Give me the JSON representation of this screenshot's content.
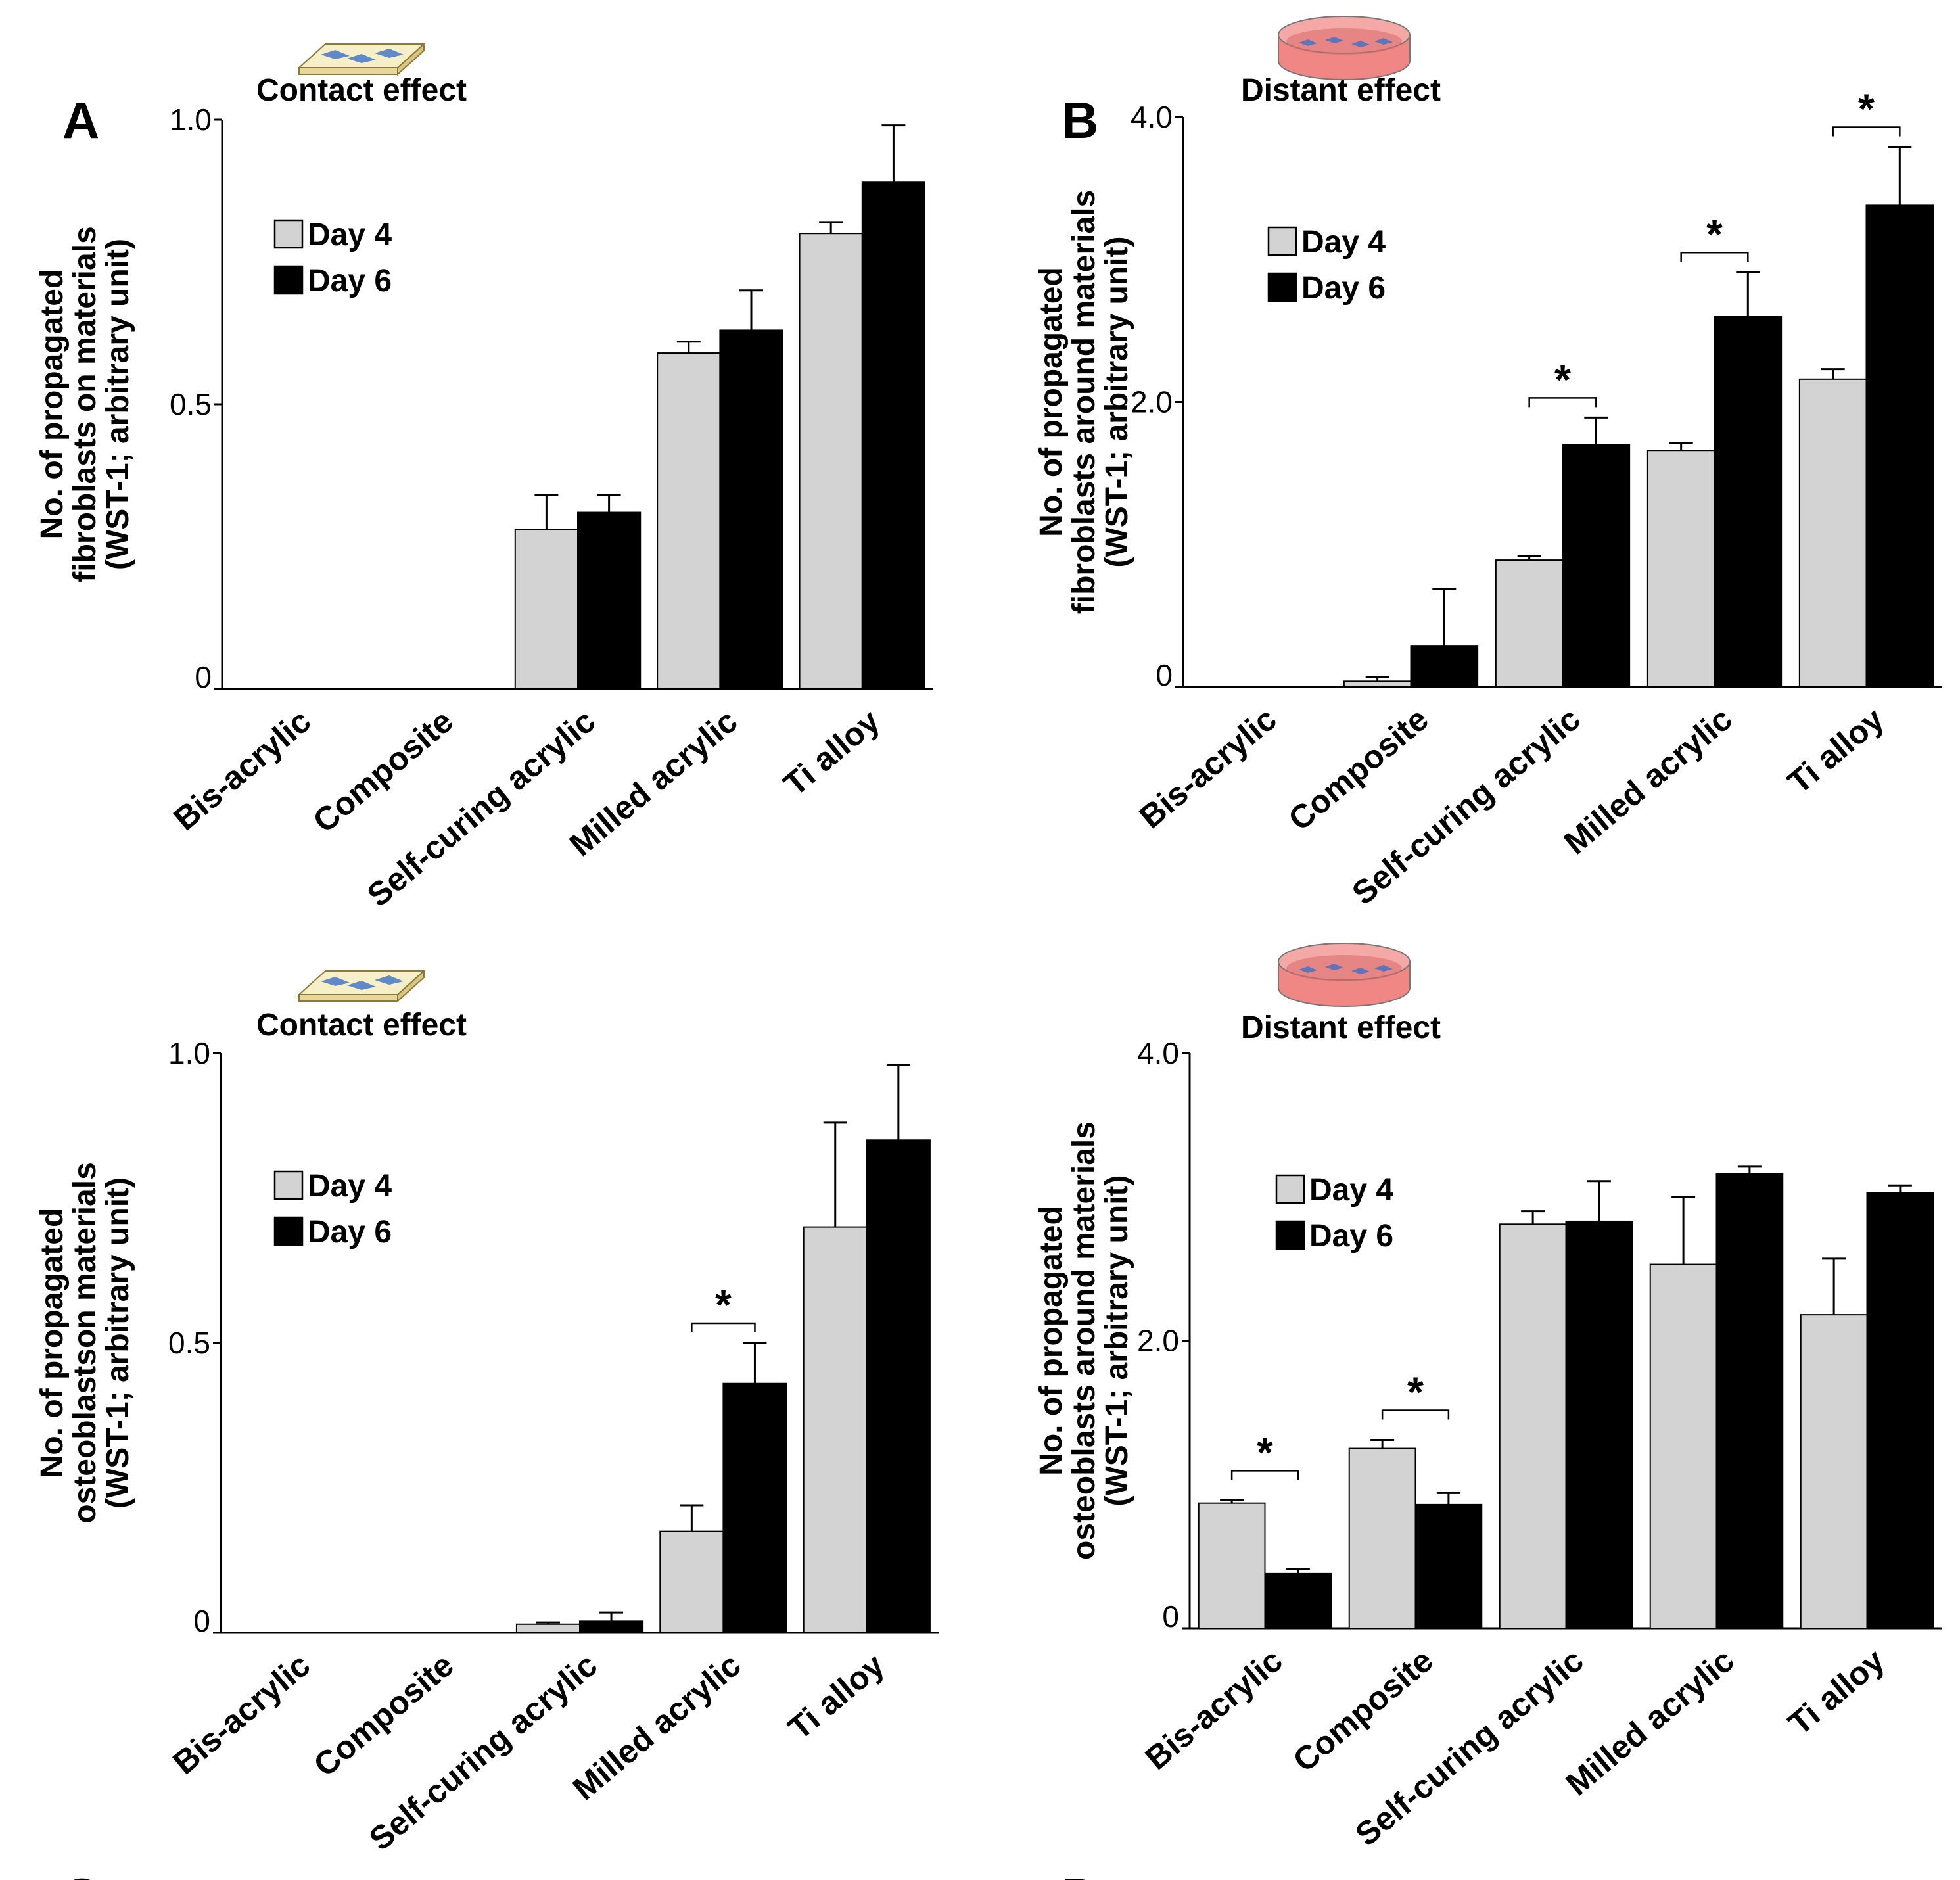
{
  "colors": {
    "day4": "#d3d3d3",
    "day6": "#000000",
    "dish_fill": "#f08784",
    "dish_rim": "#d86a68",
    "slide_fill": "#f6efc8",
    "cell": "#3d6fc7"
  },
  "chart_data": [
    {
      "panel": "A",
      "type": "bar",
      "title": "Contact effect",
      "icon": "slide-icon",
      "ylabel": [
        "No. of propagated",
        "fibroblasts on materials",
        "(WST-1; arbitrary unit)"
      ],
      "ylim": [
        0,
        1.0
      ],
      "yticks": [
        {
          "value": 0,
          "label": "0"
        },
        {
          "value": 0.5,
          "label": "0.5"
        },
        {
          "value": 1.0,
          "label": "1.0"
        }
      ],
      "categories": [
        "Bis-acrylic",
        "Composite",
        "Self-curing acrylic",
        "Milled acrylic",
        "Ti alloy"
      ],
      "series": [
        {
          "name": "Day 4",
          "values": [
            0,
            0,
            0.28,
            0.59,
            0.8
          ],
          "errors": [
            0,
            0,
            0.06,
            0.02,
            0.02
          ]
        },
        {
          "name": "Day 6",
          "values": [
            0,
            0,
            0.31,
            0.63,
            0.89
          ],
          "errors": [
            0,
            0,
            0.03,
            0.07,
            0.1
          ]
        }
      ],
      "significance": []
    },
    {
      "panel": "B",
      "type": "bar",
      "title": "Distant effect",
      "icon": "dish-icon",
      "ylabel": [
        "No. of propagated",
        "fibroblasts around materials",
        "(WST-1; arbitrary unit)"
      ],
      "ylim": [
        0,
        4.0
      ],
      "yticks": [
        {
          "value": 0,
          "label": "0"
        },
        {
          "value": 2.0,
          "label": "2.0"
        },
        {
          "value": 4.0,
          "label": "4.0"
        }
      ],
      "categories": [
        "Bis-acrylic",
        "Composite",
        "Self-curing acrylic",
        "Milled acrylic",
        "Ti alloy"
      ],
      "series": [
        {
          "name": "Day 4",
          "values": [
            0,
            0.04,
            0.89,
            1.66,
            2.16
          ],
          "errors": [
            0,
            0.03,
            0.03,
            0.05,
            0.07
          ]
        },
        {
          "name": "Day 6",
          "values": [
            0,
            0.29,
            1.7,
            2.6,
            3.38
          ],
          "errors": [
            0,
            0.4,
            0.19,
            0.31,
            0.41
          ]
        }
      ],
      "significance": [
        {
          "category": 2,
          "label": "*"
        },
        {
          "category": 3,
          "label": "*"
        },
        {
          "category": 4,
          "label": "*"
        }
      ]
    },
    {
      "panel": "C",
      "type": "bar",
      "title": "Contact effect",
      "icon": "slide-icon",
      "ylabel": [
        "No. of propagated",
        "osteoblastson materials",
        "(WST-1; arbitrary unit)"
      ],
      "ylim": [
        0,
        1.0
      ],
      "yticks": [
        {
          "value": 0,
          "label": "0"
        },
        {
          "value": 0.5,
          "label": "0.5"
        },
        {
          "value": 1.0,
          "label": "1.0"
        }
      ],
      "categories": [
        "Bis-acrylic",
        "Composite",
        "Self-curing acrylic",
        "Milled acrylic",
        "Ti alloy"
      ],
      "series": [
        {
          "name": "Day 4",
          "values": [
            0,
            0,
            0.015,
            0.175,
            0.7
          ],
          "errors": [
            0,
            0,
            0.003,
            0.045,
            0.18
          ]
        },
        {
          "name": "Day 6",
          "values": [
            0,
            0,
            0.02,
            0.43,
            0.85
          ],
          "errors": [
            0,
            0,
            0.015,
            0.07,
            0.13
          ]
        }
      ],
      "significance": [
        {
          "category": 3,
          "label": "*"
        }
      ]
    },
    {
      "panel": "D",
      "type": "bar",
      "title": "Distant effect",
      "icon": "dish-icon",
      "ylabel": [
        "No. of propagated",
        "osteoblasts around materials",
        "(WST-1; arbitrary unit)"
      ],
      "ylim": [
        0,
        4.0
      ],
      "yticks": [
        {
          "value": 0,
          "label": "0"
        },
        {
          "value": 2.0,
          "label": "2.0"
        },
        {
          "value": 4.0,
          "label": "4.0"
        }
      ],
      "categories": [
        "Bis-acrylic",
        "Composite",
        "Self-curing acrylic",
        "Milled acrylic",
        "Ti alloy"
      ],
      "series": [
        {
          "name": "Day 4",
          "values": [
            0.87,
            1.25,
            2.81,
            2.53,
            2.18
          ],
          "errors": [
            0.02,
            0.06,
            0.09,
            0.47,
            0.39
          ]
        },
        {
          "name": "Day 6",
          "values": [
            0.38,
            0.86,
            2.83,
            3.16,
            3.03
          ],
          "errors": [
            0.03,
            0.08,
            0.28,
            0.05,
            0.05
          ]
        }
      ],
      "significance": [
        {
          "category": 0,
          "label": "*"
        },
        {
          "category": 1,
          "label": "*"
        }
      ]
    }
  ]
}
